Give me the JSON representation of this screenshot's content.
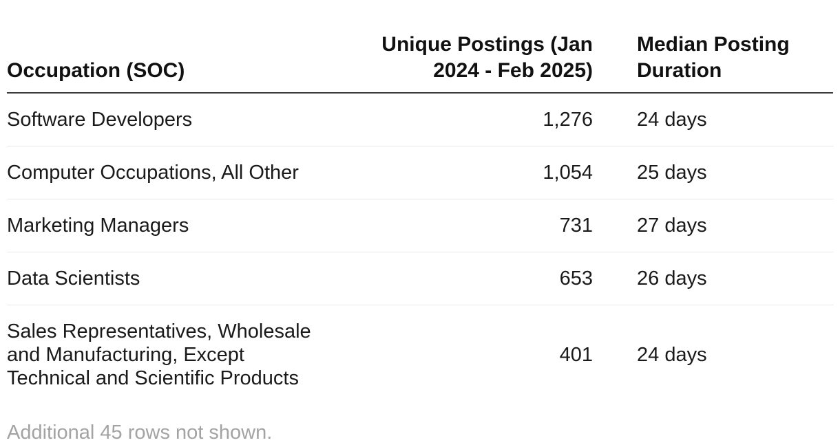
{
  "table": {
    "columns": [
      {
        "label": "Occupation (SOC)"
      },
      {
        "label": "Unique Postings (Jan 2024 - Feb 2025)"
      },
      {
        "label": "Median Posting Duration"
      }
    ],
    "rows": [
      {
        "occupation": "Software Developers",
        "unique_postings": "1,276",
        "median_duration": "24 days"
      },
      {
        "occupation": "Computer Occupations, All Other",
        "unique_postings": "1,054",
        "median_duration": "25 days"
      },
      {
        "occupation": "Marketing Managers",
        "unique_postings": "731",
        "median_duration": "27 days"
      },
      {
        "occupation": "Data Scientists",
        "unique_postings": "653",
        "median_duration": "26 days"
      },
      {
        "occupation": "Sales Representatives, Wholesale and Manufacturing, Except Technical and Scientific Products",
        "unique_postings": "401",
        "median_duration": "24 days"
      }
    ],
    "footnote": "Additional 45 rows not shown."
  },
  "chart_data": {
    "type": "table",
    "title": "",
    "columns": [
      "Occupation (SOC)",
      "Unique Postings (Jan 2024 - Feb 2025)",
      "Median Posting Duration"
    ],
    "categories": [
      "Software Developers",
      "Computer Occupations, All Other",
      "Marketing Managers",
      "Data Scientists",
      "Sales Representatives, Wholesale and Manufacturing, Except Technical and Scientific Products"
    ],
    "series": [
      {
        "name": "Unique Postings (Jan 2024 - Feb 2025)",
        "values": [
          1276,
          1054,
          731,
          653,
          401
        ]
      },
      {
        "name": "Median Posting Duration (days)",
        "values": [
          24,
          25,
          27,
          26,
          24
        ]
      }
    ],
    "annotations": [
      "Additional 45 rows not shown."
    ]
  },
  "colors": {
    "background": "#ffffff",
    "header_text": "#111111",
    "body_text": "#1a1a1a",
    "header_rule": "#3b3b3b",
    "row_separator": "#e8e8e8",
    "footnote_text": "#a3a3a3"
  }
}
